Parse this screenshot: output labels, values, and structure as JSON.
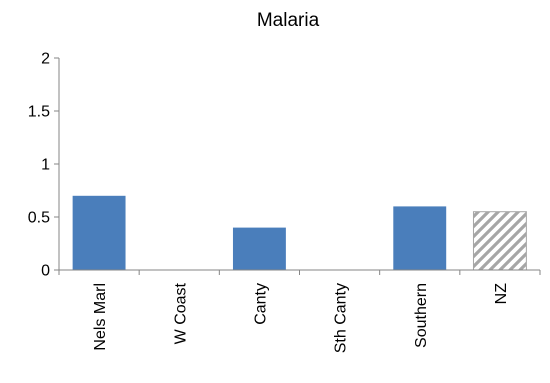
{
  "chart_data": {
    "type": "bar",
    "title": "Malaria",
    "xlabel": "",
    "ylabel": "",
    "categories": [
      "Nels Marl",
      "W Coast",
      "Canty",
      "Sth Canty",
      "Southern",
      "NZ"
    ],
    "values": [
      0.7,
      0,
      0.4,
      0,
      0.6,
      0.55
    ],
    "ylim": [
      0,
      2
    ],
    "yticks": [
      "0",
      "0.5",
      "1",
      "1.5",
      "2"
    ],
    "ytick_values": [
      0,
      0.5,
      1,
      1.5,
      2
    ],
    "grid": false,
    "legend": "none",
    "bar_color": "#4a7ebb",
    "highlight_category": "NZ",
    "highlight_style": "diagonal-hatch",
    "highlight_colors": [
      "#a6a6a6",
      "#ffffff"
    ]
  }
}
